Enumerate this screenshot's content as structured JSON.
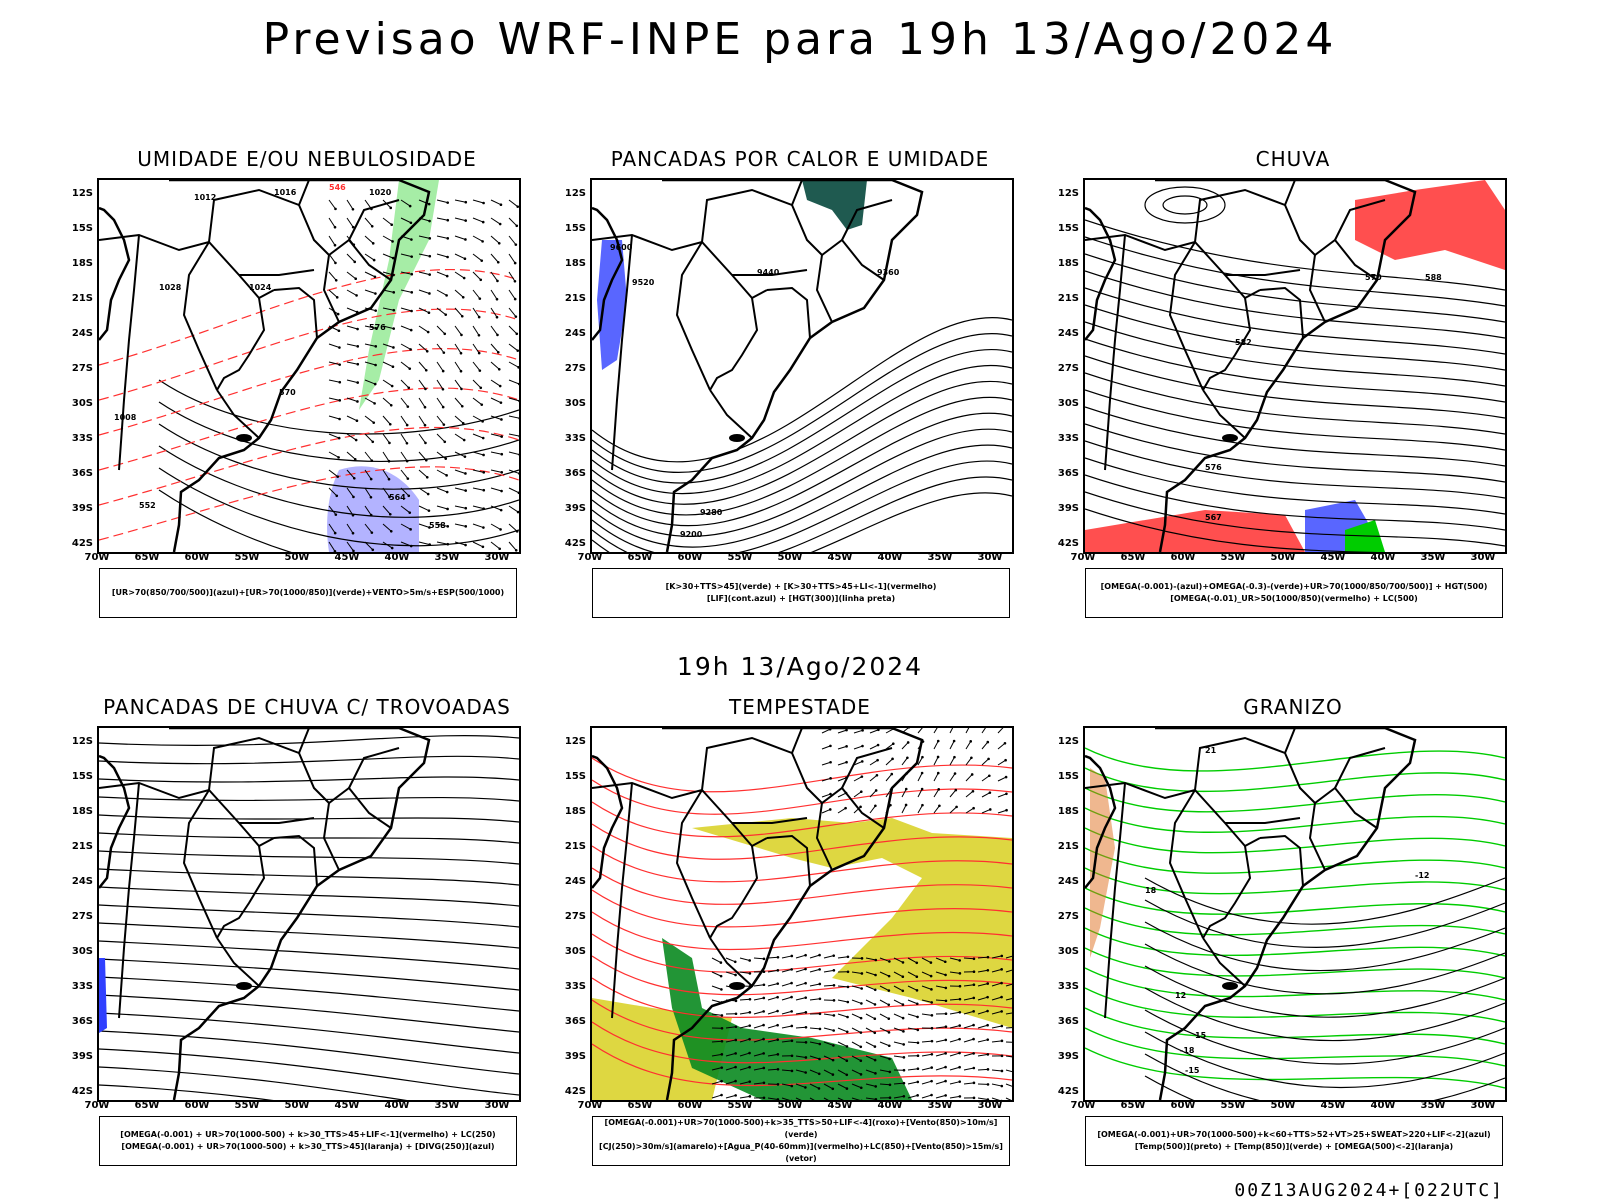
{
  "title": "Previsao WRF-INPE  para 19h 13/Ago/2024",
  "subtitle": "19h 13/Ago/2024",
  "footer": "00Z13AUG2024+[022UTC]",
  "axes": {
    "lat_labels": [
      "12S",
      "15S",
      "18S",
      "21S",
      "24S",
      "27S",
      "30S",
      "33S",
      "36S",
      "39S",
      "42S"
    ],
    "lon_labels": [
      "70W",
      "65W",
      "60W",
      "55W",
      "50W",
      "45W",
      "40W",
      "35W",
      "30W"
    ]
  },
  "colors": {
    "contour": "#000000",
    "red": "#ff3030",
    "green": "#00cc00",
    "blue": "#3040ff",
    "lilac": "#a0a0ff",
    "yellow": "#d8d020",
    "darkgreen": "#0a8a20",
    "teal": "#1f5a50",
    "orange": "#e07020"
  },
  "panels": [
    {
      "id": "umidade",
      "title": "UMIDADE E/OU NEBULOSIDADE",
      "legend": [
        "[UR>70(850/700/500)](azul)+[UR>70(1000/850)](verde)+VENTO>5m/s+ESP(500/1000)"
      ],
      "contour_labels": [
        "1012",
        "1016",
        "1020",
        "1024",
        "1028",
        "1008",
        "576",
        "570",
        "564",
        "558",
        "552",
        "546"
      ]
    },
    {
      "id": "pancadas-calor",
      "title": "PANCADAS POR CALOR E UMIDADE",
      "legend": [
        "[K>30+TTS>45](verde) + [K>30+TTS>45+LI<-1](vermelho)",
        "[LIF](cont.azul) + [HGT(300)](linha preta)"
      ],
      "contour_labels": [
        "9600",
        "9520",
        "9440",
        "9360",
        "9280",
        "9200"
      ]
    },
    {
      "id": "chuva",
      "title": "CHUVA",
      "legend": [
        "[OMEGA(-0.001)-(azul)+OMEGA(-0.3)-(verde)+UR>70(1000/850/700/500)] + HGT(500)",
        "[OMEGA(-0.01)_UR>50(1000/850)(vermelho) + LC(500)"
      ],
      "contour_labels": [
        "588",
        "582",
        "576",
        "570",
        "567"
      ]
    },
    {
      "id": "pancadas-trovoadas",
      "title": "PANCADAS DE CHUVA C/ TROVOADAS",
      "legend": [
        "[OMEGA(-0.001) + UR>70(1000-500) + k>30_TTS>45+LIF<-1](vermelho) + LC(250)",
        "[OMEGA(-0.001) + UR>70(1000-500) + k>30_TTS>45](laranja) + [DIVG(250)](azul)"
      ],
      "contour_labels": []
    },
    {
      "id": "tempestade",
      "title": "TEMPESTADE",
      "legend": [
        "[OMEGA(-0.001)+UR>70(1000-500)+k>35_TTS>50+LIF<-4](roxo)+[Vento(850)>10m/s](verde)",
        "[CJ(250)>30m/s](amarelo)+[Agua_P(40-60mm)](vermelho)+LC(850)+[Vento(850)>15m/s](vetor)"
      ],
      "contour_labels": []
    },
    {
      "id": "granizo",
      "title": "GRANIZO",
      "legend": [
        "[OMEGA(-0.001)+UR>70(1000-500)+k<60+TTS>52+VT>25+SWEAT>220+LIF<-2](azul)",
        "[Temp(500)](preto) + [Temp(850)](verde) + [OMEGA(500)<-2](laranja)"
      ],
      "contour_labels": [
        "-12",
        "-15",
        "-18",
        "15",
        "12",
        "21",
        "18"
      ]
    }
  ]
}
